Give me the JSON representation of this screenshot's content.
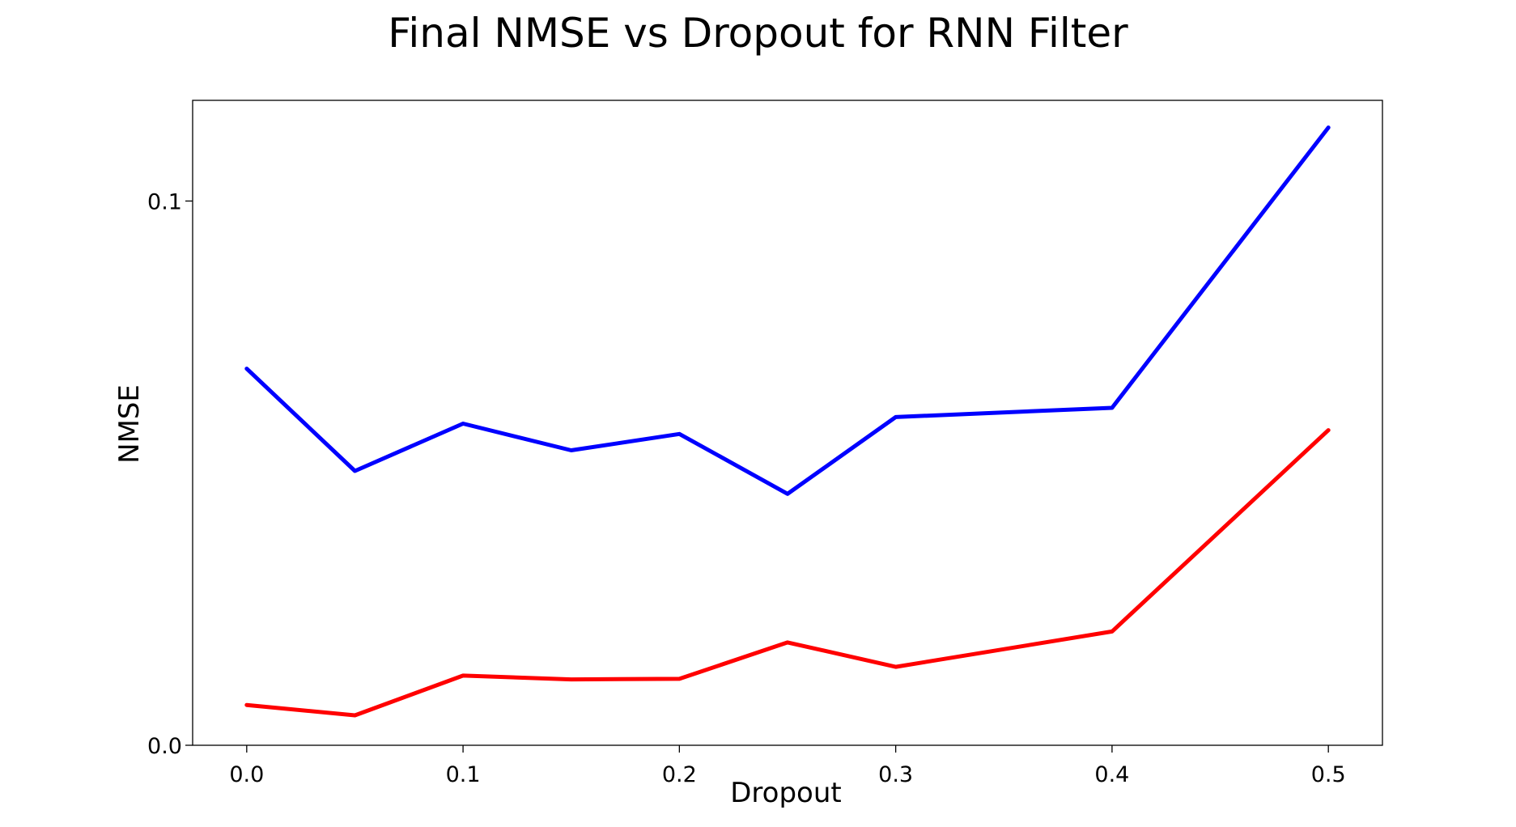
{
  "chart_data": {
    "type": "line",
    "title": "Final NMSE vs Dropout for RNN Filter",
    "xlabel": "Dropout",
    "ylabel": "NMSE",
    "x": [
      0.0,
      0.05,
      0.1,
      0.15,
      0.2,
      0.25,
      0.3,
      0.4,
      0.5
    ],
    "xlim": [
      -0.025,
      0.525
    ],
    "ylim": [
      0.0,
      0.1185
    ],
    "xticks": [
      {
        "value": 0.0,
        "label": "0.0"
      },
      {
        "value": 0.1,
        "label": "0.1"
      },
      {
        "value": 0.2,
        "label": "0.2"
      },
      {
        "value": 0.3,
        "label": "0.3"
      },
      {
        "value": 0.4,
        "label": "0.4"
      },
      {
        "value": 0.5,
        "label": "0.5"
      }
    ],
    "yticks": [
      {
        "value": 0.0,
        "label": "0.0"
      },
      {
        "value": 0.1,
        "label": "0.1"
      }
    ],
    "grid": false,
    "series": [
      {
        "color": "#0000ff",
        "values": [
          0.0692,
          0.0504,
          0.0591,
          0.0542,
          0.0572,
          0.0462,
          0.0603,
          0.062,
          0.1135
        ]
      },
      {
        "color": "#ff0000",
        "values": [
          0.0074,
          0.0055,
          0.0128,
          0.0121,
          0.0122,
          0.0189,
          0.0144,
          0.0209,
          0.0579
        ]
      }
    ]
  }
}
